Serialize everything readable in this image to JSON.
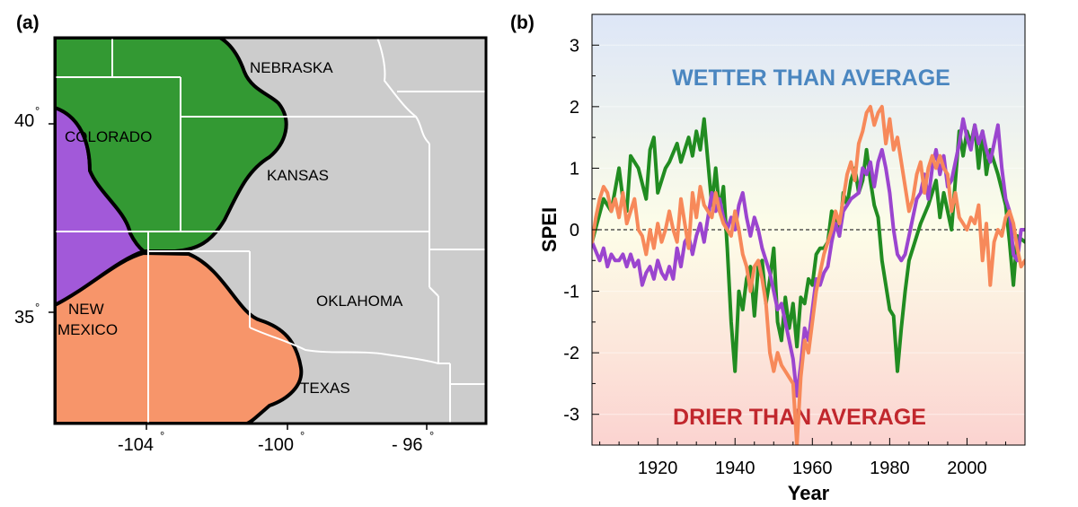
{
  "panel_a": {
    "label": "(a)",
    "region_labels": {
      "nebraska": "NEBRASKA",
      "colorado": "COLORADO",
      "kansas": "KANSAS",
      "oklahoma": "OKLAHOMA",
      "new_mexico_1": "NEW",
      "new_mexico_2": "MEXICO",
      "texas": "TEXAS"
    },
    "lat_ticks": [
      "40",
      "35"
    ],
    "lon_ticks": [
      "-104",
      "-100",
      "- 96"
    ],
    "degree_symbol": "°",
    "colors": {
      "background": "#cccccc",
      "green_region": "#339933",
      "purple_region": "#a259d9",
      "salmon_region": "#f7956a",
      "borders": "#ffffff"
    }
  },
  "panel_b": {
    "label": "(b)",
    "wetter_label": "WETTER THAN AVERAGE",
    "drier_label": "DRIER THAN AVERAGE",
    "colors": {
      "wetter": "#4a86c0",
      "drier": "#c1272d"
    }
  },
  "chart_data": {
    "type": "line",
    "xlabel": "Year",
    "ylabel": "SPEI",
    "xlim": [
      1903,
      2015
    ],
    "ylim": [
      -3.5,
      3.5
    ],
    "x_ticks": [
      1920,
      1940,
      1960,
      1980,
      2000
    ],
    "y_ticks": [
      -3,
      -2,
      -1,
      0,
      1,
      2,
      3
    ],
    "reference_line": 0,
    "grid": false,
    "background_gradient": {
      "top": "#dde6f7",
      "middle": "#fdfde8",
      "bottom": "#fbd3d0"
    },
    "series": [
      {
        "color": "#218c21",
        "x": [
          1903,
          1906,
          1908,
          1910,
          1911,
          1912,
          1913,
          1915,
          1917,
          1918,
          1919,
          1920,
          1922,
          1923,
          1925,
          1926,
          1928,
          1929,
          1930,
          1931,
          1932,
          1934,
          1935,
          1936,
          1937,
          1938,
          1939,
          1940,
          1941,
          1942,
          1943,
          1944,
          1945,
          1946,
          1947,
          1948,
          1949,
          1950,
          1951,
          1952,
          1953,
          1954,
          1955,
          1956,
          1957,
          1958,
          1959,
          1960,
          1961,
          1962,
          1963,
          1964,
          1965,
          1966,
          1967,
          1968,
          1969,
          1970,
          1971,
          1972,
          1973,
          1974,
          1975,
          1976,
          1977,
          1978,
          1979,
          1980,
          1981,
          1982,
          1983,
          1984,
          1985,
          1986,
          1988,
          1990,
          1992,
          1993,
          1994,
          1996,
          1998,
          1999,
          2000,
          2001,
          2002,
          2003,
          2004,
          2005,
          2006,
          2008,
          2010,
          2011,
          2012,
          2013,
          2015
        ],
        "y": [
          -0.2,
          0.5,
          0.3,
          1.0,
          0.5,
          0.3,
          1.2,
          1.0,
          0.5,
          1.3,
          1.5,
          0.6,
          1.0,
          1.1,
          1.4,
          1.1,
          1.5,
          1.2,
          1.6,
          1.3,
          1.8,
          0.4,
          1.0,
          0.3,
          0.7,
          -0.3,
          -1.5,
          -2.3,
          -1.0,
          -1.3,
          -0.8,
          -0.6,
          -1.4,
          -0.6,
          -0.5,
          -1.2,
          -0.8,
          -0.3,
          -1.5,
          -1.8,
          -1.1,
          -1.6,
          -1.2,
          -1.9,
          -1.1,
          -1.2,
          -0.8,
          -0.9,
          -0.4,
          -0.3,
          -0.3,
          -0.2,
          0.3,
          0.2,
          -0.1,
          0.6,
          0.4,
          0.8,
          1.0,
          0.6,
          0.8,
          1.3,
          0.8,
          0.4,
          0.2,
          -0.5,
          -0.9,
          -1.3,
          -1.4,
          -2.3,
          -1.6,
          -1.0,
          -0.5,
          -0.3,
          0.1,
          0.4,
          0.8,
          0.2,
          0.6,
          0.0,
          1.6,
          1.2,
          1.6,
          1.4,
          1.7,
          1.0,
          1.6,
          0.9,
          1.3,
          0.9,
          0.4,
          -0.2,
          -0.9,
          -0.1,
          -0.2
        ]
      },
      {
        "color": "#9b45cf",
        "x": [
          1903,
          1905,
          1906,
          1907,
          1908,
          1909,
          1910,
          1911,
          1912,
          1913,
          1914,
          1915,
          1916,
          1917,
          1918,
          1919,
          1920,
          1921,
          1922,
          1923,
          1924,
          1925,
          1926,
          1927,
          1928,
          1929,
          1930,
          1931,
          1932,
          1933,
          1934,
          1935,
          1936,
          1937,
          1938,
          1939,
          1940,
          1941,
          1942,
          1943,
          1944,
          1945,
          1946,
          1947,
          1948,
          1949,
          1950,
          1951,
          1952,
          1953,
          1954,
          1955,
          1956,
          1957,
          1958,
          1959,
          1960,
          1961,
          1962,
          1963,
          1964,
          1965,
          1966,
          1967,
          1968,
          1970,
          1972,
          1973,
          1974,
          1975,
          1976,
          1977,
          1978,
          1979,
          1980,
          1981,
          1982,
          1983,
          1984,
          1985,
          1986,
          1987,
          1988,
          1989,
          1990,
          1991,
          1992,
          1993,
          1994,
          1995,
          1996,
          1997,
          1998,
          1999,
          2000,
          2001,
          2002,
          2003,
          2004,
          2005,
          2006,
          2007,
          2008,
          2009,
          2010,
          2011,
          2012,
          2013,
          2014,
          2015
        ],
        "y": [
          -0.2,
          -0.5,
          -0.3,
          -0.6,
          -0.4,
          -0.5,
          -0.5,
          -0.4,
          -0.6,
          -0.4,
          -0.6,
          -0.5,
          -0.9,
          -0.7,
          -0.6,
          -0.8,
          -0.5,
          -0.7,
          -0.8,
          -0.6,
          -0.8,
          -0.3,
          -0.6,
          -0.2,
          -0.1,
          -0.4,
          -0.1,
          0.1,
          -0.2,
          0.2,
          0.6,
          0.3,
          0.5,
          0.2,
          0.0,
          0.2,
          0.0,
          0.4,
          0.6,
          0.2,
          -0.1,
          0.2,
          0.0,
          -0.3,
          -0.5,
          -0.7,
          -1.0,
          -1.3,
          -1.2,
          -1.5,
          -1.8,
          -2.1,
          -2.7,
          -2.2,
          -1.6,
          -1.8,
          -1.3,
          -0.8,
          -0.9,
          -0.7,
          -0.6,
          -0.2,
          0.1,
          -0.1,
          0.3,
          0.5,
          0.6,
          1.0,
          0.9,
          1.1,
          0.7,
          1.1,
          1.3,
          1.0,
          0.6,
          0.0,
          -0.4,
          -0.5,
          -0.4,
          -0.1,
          0.2,
          0.5,
          0.6,
          0.9,
          0.5,
          1.0,
          1.3,
          0.9,
          1.2,
          0.7,
          0.8,
          1.1,
          1.4,
          1.8,
          1.5,
          1.3,
          1.7,
          1.4,
          1.6,
          1.3,
          1.1,
          1.4,
          1.7,
          1.0,
          0.5,
          0.3,
          -0.4,
          -0.5,
          0.0,
          0.0
        ]
      },
      {
        "color": "#f7895a",
        "x": [
          1903,
          1904,
          1905,
          1906,
          1907,
          1908,
          1909,
          1910,
          1911,
          1912,
          1913,
          1914,
          1915,
          1916,
          1917,
          1918,
          1919,
          1920,
          1921,
          1922,
          1923,
          1924,
          1925,
          1926,
          1927,
          1928,
          1929,
          1930,
          1931,
          1932,
          1933,
          1934,
          1935,
          1936,
          1937,
          1938,
          1939,
          1940,
          1941,
          1942,
          1943,
          1944,
          1945,
          1946,
          1947,
          1948,
          1949,
          1950,
          1951,
          1952,
          1953,
          1954,
          1955,
          1956,
          1957,
          1958,
          1959,
          1960,
          1961,
          1962,
          1963,
          1964,
          1965,
          1966,
          1967,
          1968,
          1969,
          1970,
          1971,
          1972,
          1973,
          1974,
          1975,
          1976,
          1977,
          1978,
          1979,
          1980,
          1981,
          1982,
          1983,
          1984,
          1985,
          1986,
          1987,
          1988,
          1989,
          1990,
          1991,
          1992,
          1993,
          1994,
          1995,
          1996,
          1997,
          1998,
          1999,
          2000,
          2001,
          2002,
          2003,
          2004,
          2005,
          2006,
          2007,
          2008,
          2009,
          2010,
          2011,
          2012,
          2013,
          2014,
          2015
        ],
        "y": [
          -0.2,
          0.2,
          0.5,
          0.7,
          0.6,
          0.3,
          0.5,
          0.2,
          0.6,
          0.1,
          0.3,
          0.5,
          0.0,
          -0.1,
          -0.4,
          0.0,
          -0.3,
          0.1,
          -0.2,
          0.0,
          0.3,
          0.0,
          -0.2,
          0.5,
          0.1,
          -0.3,
          0.6,
          0.2,
          0.7,
          0.4,
          0.3,
          0.2,
          0.6,
          0.3,
          0.1,
          0.0,
          -0.1,
          0.3,
          0.0,
          -0.4,
          -0.6,
          -1.0,
          -0.6,
          -0.5,
          -0.8,
          -1.2,
          -2.0,
          -2.3,
          -2.0,
          -2.2,
          -2.3,
          -2.4,
          -2.5,
          -3.5,
          -2.4,
          -1.8,
          -2.0,
          -1.5,
          -1.0,
          -0.7,
          -0.4,
          -0.2,
          0.0,
          0.3,
          0.1,
          0.5,
          0.9,
          1.1,
          0.8,
          1.4,
          1.6,
          1.9,
          2.0,
          1.7,
          1.9,
          2.0,
          1.4,
          1.8,
          1.3,
          1.5,
          1.1,
          0.7,
          0.3,
          0.5,
          0.9,
          1.1,
          0.6,
          1.0,
          1.2,
          1.0,
          1.2,
          1.0,
          0.9,
          0.3,
          0.6,
          0.2,
          0.1,
          0.0,
          0.2,
          0.1,
          0.4,
          -0.5,
          0.1,
          -0.9,
          -0.2,
          0.0,
          -0.1,
          0.2,
          0.3,
          0.1,
          -0.3,
          -0.6,
          -0.5
        ]
      }
    ]
  }
}
